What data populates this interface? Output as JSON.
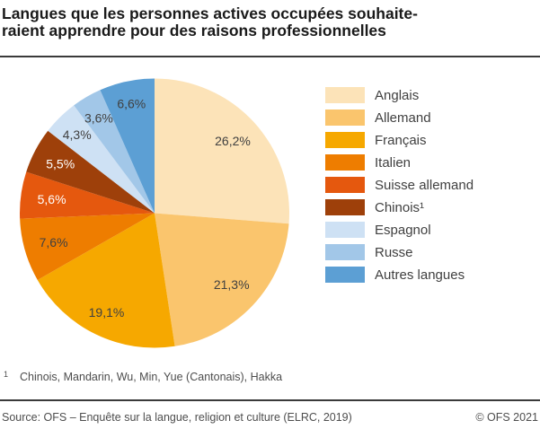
{
  "title": {
    "line1": "Langues que les personnes actives occupées souhaite-",
    "line2": "raient apprendre pour des raisons professionnelles"
  },
  "chart_data": {
    "type": "pie",
    "title": "Langues que les personnes actives occupées souhaiteraient apprendre pour des raisons professionnelles",
    "start_angle_deg": 0,
    "direction": "clockwise",
    "legend_position": "right",
    "series": [
      {
        "label": "Anglais",
        "value": 26.2,
        "display": "26,2%",
        "color": "#FCE3B8",
        "label_color": "#404040"
      },
      {
        "label": "Allemand",
        "value": 21.3,
        "display": "21,3%",
        "color": "#FAC56D",
        "label_color": "#404040"
      },
      {
        "label": "Français",
        "value": 19.1,
        "display": "19,1%",
        "color": "#F6A800",
        "label_color": "#404040"
      },
      {
        "label": "Italien",
        "value": 7.6,
        "display": "7,6%",
        "color": "#EE7D00",
        "label_color": "#404040"
      },
      {
        "label": "Suisse allemand",
        "value": 5.6,
        "display": "5,6%",
        "color": "#E5580E",
        "label_color": "#FFFFFF"
      },
      {
        "label": "Chinois¹",
        "value": 5.5,
        "display": "5,5%",
        "color": "#9E400A",
        "label_color": "#FFFFFF"
      },
      {
        "label": "Espagnol",
        "value": 4.3,
        "display": "4,3%",
        "color": "#CEE1F4",
        "label_color": "#404040"
      },
      {
        "label": "Russe",
        "value": 3.6,
        "display": "3,6%",
        "color": "#A2C7E8",
        "label_color": "#404040"
      },
      {
        "label": "Autres langues",
        "value": 6.6,
        "display": "6,6%",
        "color": "#5C9FD4",
        "label_color": "#404040"
      }
    ]
  },
  "footnote": {
    "marker": "1",
    "text": "Chinois, Mandarin, Wu, Min, Yue (Cantonais), Hakka"
  },
  "footer": {
    "source": "Source: OFS – Enquête sur la langue, religion et culture (ELRC, 2019)",
    "copyright": "© OFS 2021"
  },
  "colors": {
    "background": "#FFFFFF",
    "rule": "#3A3A3A",
    "title_text": "#1A1A1A",
    "body_text": "#4D4D4D"
  }
}
